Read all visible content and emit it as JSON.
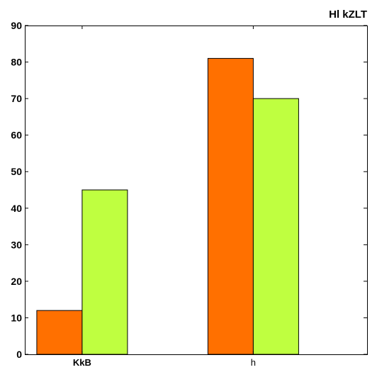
{
  "chart_data": {
    "type": "bar",
    "title": "Hl kZLT",
    "xlabel": "",
    "ylabel": "",
    "categories": [
      "KkB",
      "h"
    ],
    "category_label_weights": [
      "bold",
      "normal"
    ],
    "series": [
      {
        "values": [
          12,
          81
        ],
        "color": "#ff7000"
      },
      {
        "values": [
          45,
          70
        ],
        "color": "#bfff40"
      }
    ],
    "ylim": [
      0,
      90
    ],
    "yticks": [
      0,
      10,
      20,
      30,
      40,
      50,
      60,
      70,
      80,
      90
    ],
    "grid": false,
    "legend": "none"
  }
}
